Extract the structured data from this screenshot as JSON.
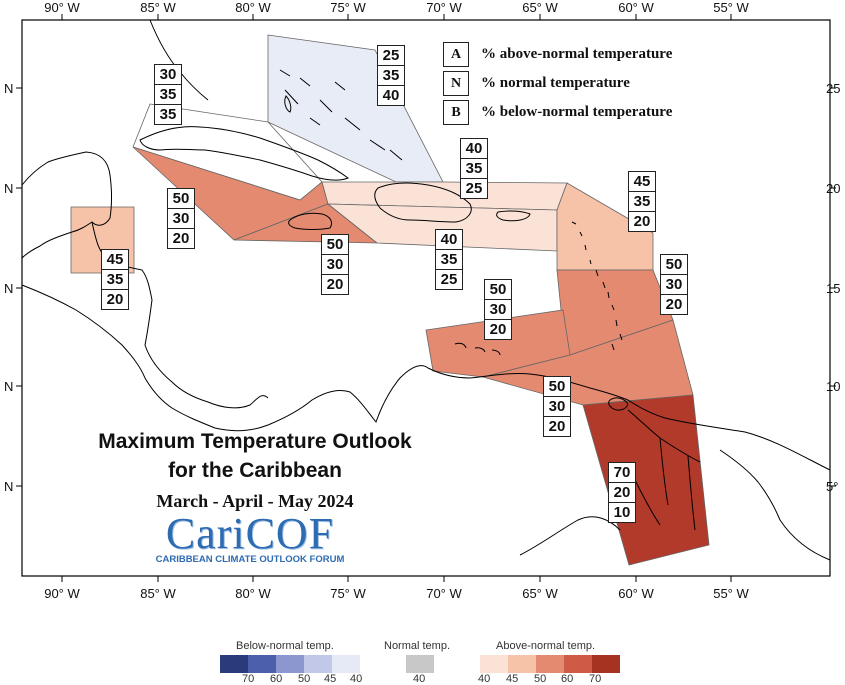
{
  "axes": {
    "longitude_labels": [
      "90° W",
      "85° W",
      "80° W",
      "75° W",
      "70° W",
      "65° W",
      "60° W",
      "55° W"
    ],
    "latitude_labels_left": [
      "N",
      "N",
      "N",
      "N",
      "N"
    ],
    "latitude_labels_right": [
      "25",
      "20",
      "15",
      "10",
      "5°"
    ]
  },
  "legend_key": [
    {
      "letter": "A",
      "text": "% above-normal temperature"
    },
    {
      "letter": "N",
      "text": "% normal temperature"
    },
    {
      "letter": "B",
      "text": "% below-normal temperature"
    }
  ],
  "title_line1": "Maximum Temperature Outlook",
  "title_line2": "for the Caribbean",
  "subtitle": "March - April - May 2024",
  "logo": {
    "name": "CariCOF",
    "tagline": "CARIBBEAN CLIMATE OUTLOOK FORUM"
  },
  "regions": [
    {
      "id": "bahamas",
      "above": "25",
      "normal": "35",
      "below": "40",
      "color": "#e8ecf6"
    },
    {
      "id": "cayman-west-cuba",
      "above": "30",
      "normal": "35",
      "below": "35",
      "color": "#ffffff"
    },
    {
      "id": "north-belize",
      "above": "45",
      "normal": "35",
      "below": "20",
      "color": "#f6c2a8"
    },
    {
      "id": "central-cuba",
      "above": "50",
      "normal": "30",
      "below": "20",
      "color": "#e48a71"
    },
    {
      "id": "jamaica",
      "above": "50",
      "normal": "30",
      "below": "20",
      "color": "#e48a71"
    },
    {
      "id": "north-hispaniola",
      "above": "40",
      "normal": "35",
      "below": "25",
      "color": "#fbe2d7"
    },
    {
      "id": "south-hispaniola",
      "above": "40",
      "normal": "35",
      "below": "25",
      "color": "#fbe2d7"
    },
    {
      "id": "leeward-islands",
      "above": "45",
      "normal": "35",
      "below": "20",
      "color": "#f6c2a8"
    },
    {
      "id": "windward-islands",
      "above": "50",
      "normal": "30",
      "below": "20",
      "color": "#e48a71"
    },
    {
      "id": "abc-islands",
      "above": "50",
      "normal": "30",
      "below": "20",
      "color": "#e48a71"
    },
    {
      "id": "trinidad",
      "above": "50",
      "normal": "30",
      "below": "20",
      "color": "#e48a71"
    },
    {
      "id": "guianas",
      "above": "70",
      "normal": "20",
      "below": "10",
      "color": "#b23a2a"
    }
  ],
  "colorbar": {
    "below_title": "Below-normal temp.",
    "normal_title": "Normal temp.",
    "above_title": "Above-normal temp.",
    "below_colors": [
      "#2b3a7a",
      "#4c5fad",
      "#8c97cf",
      "#c2c8e8",
      "#e6e9f6"
    ],
    "below_ticks": [
      "70",
      "60",
      "50",
      "45",
      "40"
    ],
    "normal_color": "#c8c8c8",
    "normal_tick": "40",
    "above_colors": [
      "#fbe2d7",
      "#f6c2a8",
      "#e48a71",
      "#cf5a45",
      "#a63322"
    ],
    "above_ticks": [
      "40",
      "45",
      "50",
      "60",
      "70"
    ]
  }
}
